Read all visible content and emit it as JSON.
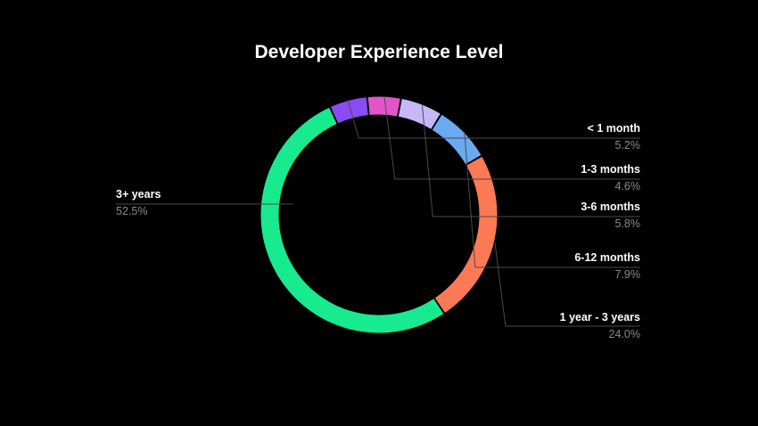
{
  "chart_data": {
    "type": "pie",
    "title": "Developer Experience Level",
    "slices": [
      {
        "label": "< 1 month",
        "value": 5.2,
        "display": "5.2%",
        "color": "#8a4cf5"
      },
      {
        "label": "1-3 months",
        "value": 4.6,
        "display": "4.6%",
        "color": "#e155c8"
      },
      {
        "label": "3-6 months",
        "value": 5.8,
        "display": "5.8%",
        "color": "#c6b8f7"
      },
      {
        "label": "6-12 months",
        "value": 7.9,
        "display": "7.9%",
        "color": "#6aaaf0"
      },
      {
        "label": "1 year - 3 years",
        "value": 24.0,
        "display": "24.0%",
        "color": "#fb7a55"
      },
      {
        "label": "3+ years",
        "value": 52.5,
        "display": "52.5%",
        "color": "#18ea8f"
      }
    ],
    "legend": "none",
    "grid": false
  }
}
